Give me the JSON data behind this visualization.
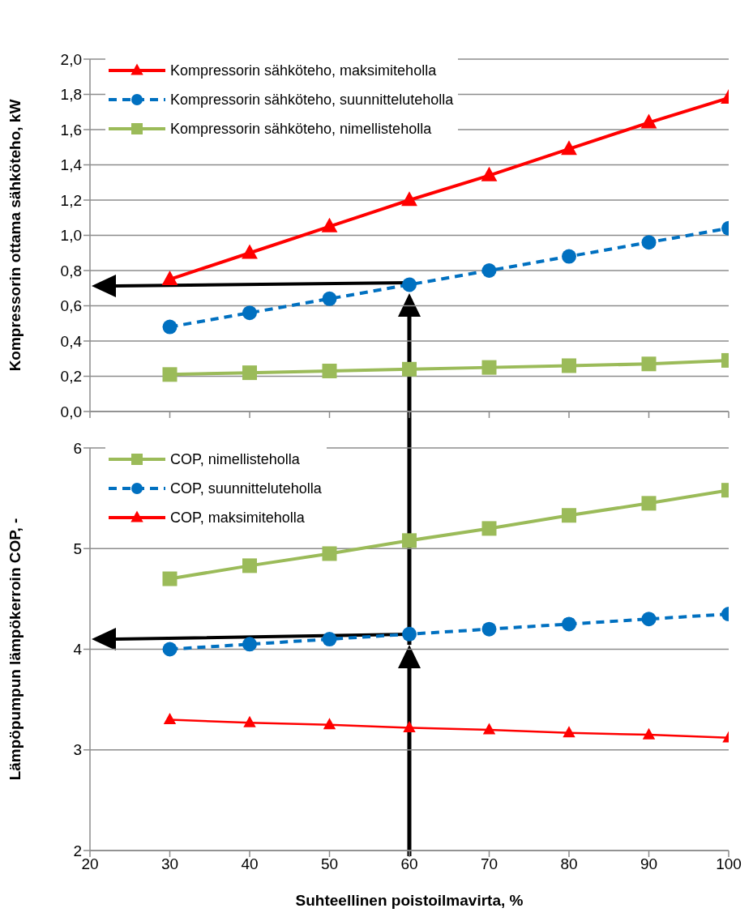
{
  "chart_data": [
    {
      "type": "line",
      "ylabel": "Kompressorin ottama sähköteho, kW",
      "x": [
        30,
        40,
        50,
        60,
        70,
        80,
        90,
        100
      ],
      "xlim": [
        20,
        100
      ],
      "xticks": [
        20,
        30,
        40,
        50,
        60,
        70,
        80,
        90,
        100
      ],
      "ylim": [
        0,
        2
      ],
      "yticks": [
        {
          "value": 0,
          "label": "0,0"
        },
        {
          "value": 0.2,
          "label": "0,2"
        },
        {
          "value": 0.4,
          "label": "0,4"
        },
        {
          "value": 0.6,
          "label": "0,6"
        },
        {
          "value": 0.8,
          "label": "0,8"
        },
        {
          "value": 1,
          "label": "1,0"
        },
        {
          "value": 1.2,
          "label": "1,2"
        },
        {
          "value": 1.4,
          "label": "1,4"
        },
        {
          "value": 1.6,
          "label": "1,6"
        },
        {
          "value": 1.8,
          "label": "1,8"
        },
        {
          "value": 2,
          "label": "2,0"
        }
      ],
      "grid": "y",
      "legend": "top left",
      "tick_labels": "y",
      "series": [
        {
          "name": "Kompressorin sähköteho, maksimiteholla",
          "color": "#ff0000",
          "marker": "triangle",
          "line_style": "solid",
          "values": [
            0.75,
            0.9,
            1.05,
            1.2,
            1.34,
            1.49,
            1.64,
            1.78
          ]
        },
        {
          "name": "Kompressorin sähköteho, suunnitteluteholla",
          "color": "#0070c0",
          "marker": "circle",
          "line_style": "dashed",
          "values": [
            0.48,
            0.56,
            0.64,
            0.72,
            0.8,
            0.88,
            0.96,
            1.04
          ]
        },
        {
          "name": "Kompressorin sähköteho, nimellisteholla",
          "color": "#9bbb59",
          "marker": "square",
          "line_style": "solid",
          "values": [
            0.21,
            0.22,
            0.23,
            0.24,
            0.25,
            0.26,
            0.27,
            0.29
          ]
        }
      ]
    },
    {
      "type": "line",
      "ylabel": "Lämpöpumpun lämpökerroin COP, -",
      "xlabel": "Suhteellinen poistoilmavirta, %",
      "x": [
        30,
        40,
        50,
        60,
        70,
        80,
        90,
        100
      ],
      "xlim": [
        20,
        100
      ],
      "xticks": [
        20,
        30,
        40,
        50,
        60,
        70,
        80,
        90,
        100
      ],
      "ylim": [
        2,
        6
      ],
      "yticks": [
        2,
        3,
        4,
        5,
        6
      ],
      "grid": "y",
      "legend": "top left",
      "series": [
        {
          "name": "COP, nimellisteholla",
          "color": "#9bbb59",
          "marker": "square",
          "line_style": "solid",
          "values": [
            4.7,
            4.83,
            4.95,
            5.08,
            5.2,
            5.33,
            5.45,
            5.58
          ]
        },
        {
          "name": "COP, suunnitteluteholla",
          "color": "#0070c0",
          "marker": "circle",
          "line_style": "dashed",
          "values": [
            4,
            4.05,
            4.1,
            4.15,
            4.2,
            4.25,
            4.3,
            4.35
          ]
        },
        {
          "name": "COP, maksimiteholla",
          "color": "#ff0000",
          "marker": "triangle",
          "line_style": "solid",
          "values": [
            3.3,
            3.27,
            3.25,
            3.22,
            3.2,
            3.17,
            3.15,
            3.12
          ]
        }
      ]
    }
  ]
}
